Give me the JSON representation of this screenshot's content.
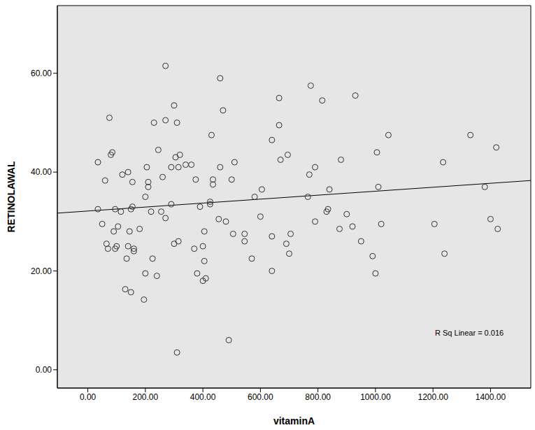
{
  "chart_data": {
    "type": "scatter",
    "x_label": "vitaminA",
    "y_label": "RETINOLAWAL",
    "annotation": "R Sq Linear = 0.016",
    "color": "#333333",
    "marker": "o",
    "grid": false,
    "x": [
      35,
      35,
      50,
      60,
      65,
      70,
      75,
      85,
      80,
      90,
      95,
      95,
      100,
      105,
      120,
      115,
      130,
      135,
      140,
      140,
      145,
      150,
      150,
      155,
      155,
      160,
      160,
      180,
      195,
      200,
      205,
      200,
      210,
      210,
      220,
      225,
      230,
      240,
      245,
      255,
      260,
      270,
      270,
      270,
      290,
      290,
      300,
      300,
      305,
      310,
      315,
      315,
      320,
      310,
      340,
      360,
      370,
      375,
      380,
      390,
      400,
      400,
      405,
      410,
      405,
      425,
      425,
      430,
      435,
      435,
      455,
      460,
      460,
      470,
      480,
      490,
      500,
      505,
      510,
      545,
      545,
      570,
      580,
      600,
      605,
      640,
      640,
      640,
      665,
      665,
      670,
      690,
      695,
      700,
      705,
      765,
      770,
      775,
      790,
      790,
      815,
      830,
      835,
      840,
      875,
      880,
      900,
      920,
      930,
      950,
      990,
      1000,
      1005,
      1010,
      1020,
      1045,
      1205,
      1235,
      1240,
      1330,
      1380,
      1400,
      1420,
      1425
    ],
    "values": [
      42,
      32.5,
      29.5,
      38.3,
      25.5,
      24.5,
      51,
      44,
      43.5,
      28,
      32.5,
      24.5,
      25,
      29,
      39.5,
      32,
      16.3,
      22.5,
      25,
      40,
      28,
      32.5,
      15.7,
      33,
      38,
      24.5,
      24,
      28.5,
      14.2,
      35,
      41,
      19.5,
      38,
      37,
      32,
      22.5,
      50,
      19,
      44.5,
      32,
      39,
      30.7,
      61.5,
      50.5,
      33.5,
      41,
      53.5,
      25.5,
      43,
      50,
      41,
      26,
      43.5,
      3.5,
      41.5,
      41.5,
      24.5,
      38.5,
      19.5,
      33,
      25,
      18,
      28,
      18.5,
      22,
      34,
      33.5,
      47.5,
      38.5,
      37.5,
      30.5,
      41,
      59,
      52.5,
      30,
      6,
      38.5,
      27.5,
      42,
      27.5,
      26,
      22.5,
      35,
      31,
      36.5,
      46.5,
      27,
      20,
      49.5,
      55,
      42.5,
      25.5,
      43.5,
      23.5,
      27.5,
      35,
      39.5,
      57.5,
      41,
      30,
      54.5,
      32,
      32.5,
      36.5,
      28.5,
      42.5,
      31.5,
      29,
      55.5,
      26,
      23,
      19.5,
      44,
      37,
      29.5,
      47.5,
      29.5,
      42,
      23.5,
      47.5,
      37,
      30.5,
      45,
      28.5
    ],
    "fit_line": {
      "x": [
        -106,
        1540
      ],
      "values": [
        31.7,
        38.3
      ]
    },
    "xlim": [
      -106,
      1540
    ],
    "ylim": [
      -3.7,
      73.7
    ],
    "xticks": [
      {
        "value": 0,
        "label": "0.00"
      },
      {
        "value": 200,
        "label": "200.00"
      },
      {
        "value": 400,
        "label": "400.00"
      },
      {
        "value": 600,
        "label": "600.00"
      },
      {
        "value": 800,
        "label": "800.00"
      },
      {
        "value": 1000,
        "label": "1000.00"
      },
      {
        "value": 1200,
        "label": "1200.00"
      },
      {
        "value": 1400,
        "label": "1400.00"
      }
    ],
    "yticks": [
      {
        "value": 0,
        "label": "0.00"
      },
      {
        "value": 20,
        "label": "20.00"
      },
      {
        "value": 40,
        "label": "40.00"
      },
      {
        "value": 60,
        "label": "60.00"
      }
    ]
  }
}
